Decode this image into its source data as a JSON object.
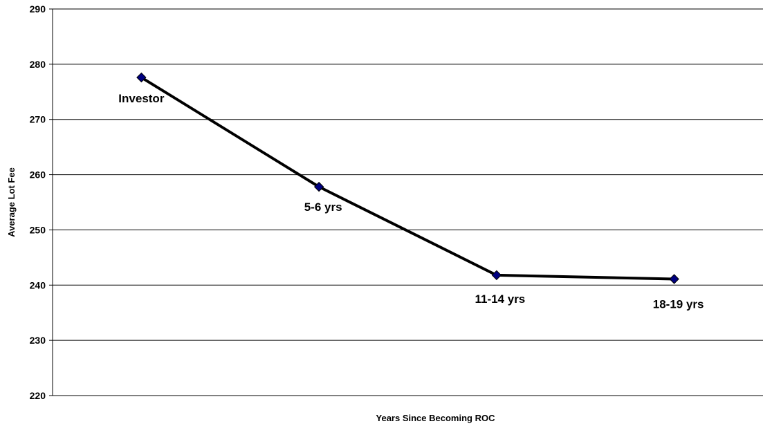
{
  "chart_data": {
    "type": "line",
    "title": "",
    "xlabel": "Years Since Becoming ROC",
    "ylabel": "Average Lot Fee",
    "ylim": [
      220,
      290
    ],
    "yticks": [
      220,
      230,
      240,
      250,
      260,
      270,
      280,
      290
    ],
    "grid": true,
    "legend": "none",
    "colors": {
      "line": "#000000",
      "marker": "#000080"
    },
    "series": [
      {
        "points": [
          {
            "label": "Investor",
            "y": 277.6
          },
          {
            "label": "5-6 yrs",
            "y": 257.8
          },
          {
            "label": "11-14 yrs",
            "y": 241.8
          },
          {
            "label": "18-19 yrs",
            "y": 241.1
          }
        ]
      }
    ]
  }
}
